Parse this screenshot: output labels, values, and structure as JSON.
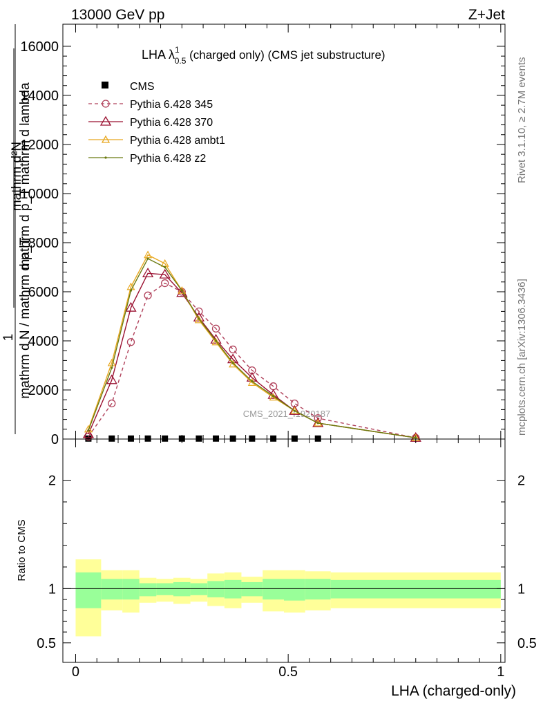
{
  "header": {
    "energy_label": "13000 GeV pp",
    "process_label": "Z+Jet"
  },
  "side": {
    "rivet_label": "Rivet 3.1.10, ≥ 2.7M events",
    "mcplots_label": "mcplots.cern.ch [arXiv:1306.3436]"
  },
  "chart_data": [
    {
      "type": "line",
      "title_main": "LHA λ",
      "title_sup": "1",
      "title_sub": "0.5",
      "title_rest": " (charged only) (CMS jet substructure)",
      "ylabel_num": "mathrm d²N",
      "ylabel_den": "mathrm d p_T mathrm d lambda",
      "ylabel_frac_one": "1",
      "ylabel_frac_den": "mathrm d N / mathrm d p_T",
      "watermark": "CMS_2021_I1920187",
      "xlim": [
        -0.03,
        1.01
      ],
      "ylim": [
        0,
        16900
      ],
      "yticks": [
        0,
        2000,
        4000,
        6000,
        8000,
        10000,
        12000,
        14000,
        16000
      ],
      "yticklabels": [
        "0",
        "2000",
        "4000",
        "6000",
        "8000",
        "10000",
        "12000",
        "14000",
        "16000"
      ],
      "series": [
        {
          "name": "CMS",
          "color": "#000000",
          "marker": "square",
          "x": [
            0.03,
            0.085,
            0.13,
            0.17,
            0.21,
            0.25,
            0.29,
            0.33,
            0.37,
            0.415,
            0.465,
            0.515,
            0.57
          ],
          "y": [
            20,
            20,
            20,
            20,
            20,
            20,
            20,
            20,
            20,
            20,
            20,
            20,
            20
          ]
        },
        {
          "name": "Pythia 6.428 345",
          "color": "#b0405a",
          "marker": "circle",
          "dash": "5,4",
          "x": [
            0.03,
            0.085,
            0.13,
            0.17,
            0.21,
            0.25,
            0.29,
            0.33,
            0.37,
            0.415,
            0.465,
            0.515,
            0.57,
            0.8
          ],
          "y": [
            100,
            1450,
            3950,
            5850,
            6350,
            6000,
            5200,
            4500,
            3650,
            2800,
            2150,
            1450,
            850,
            50
          ]
        },
        {
          "name": "Pythia 6.428 370",
          "color": "#9a1030",
          "marker": "triangle",
          "x": [
            0.03,
            0.085,
            0.13,
            0.17,
            0.21,
            0.25,
            0.29,
            0.33,
            0.37,
            0.415,
            0.465,
            0.515,
            0.57,
            0.8
          ],
          "y": [
            200,
            2400,
            5350,
            6750,
            6700,
            5950,
            4950,
            4050,
            3250,
            2500,
            1800,
            1150,
            650,
            50
          ]
        },
        {
          "name": "Pythia 6.428 ambt1",
          "color": "#e8a820",
          "marker": "triangle-small",
          "x": [
            0.03,
            0.085,
            0.13,
            0.17,
            0.21,
            0.25,
            0.29,
            0.33,
            0.37,
            0.415,
            0.465,
            0.515,
            0.57,
            0.8
          ],
          "y": [
            400,
            3100,
            6200,
            7500,
            7150,
            6050,
            4850,
            3950,
            3050,
            2300,
            1700,
            1150,
            650,
            50
          ]
        },
        {
          "name": "Pythia 6.428 z2",
          "color": "#6b7a10",
          "marker": "dot",
          "x": [
            0.03,
            0.085,
            0.13,
            0.17,
            0.21,
            0.25,
            0.29,
            0.33,
            0.37,
            0.415,
            0.465,
            0.515,
            0.57,
            0.8
          ],
          "y": [
            350,
            2900,
            6050,
            7350,
            7000,
            6050,
            4900,
            4000,
            3100,
            2350,
            1750,
            1150,
            650,
            50
          ]
        }
      ]
    },
    {
      "type": "area",
      "ylabel": "Ratio to CMS",
      "xlabel": "LHA (charged-only)",
      "xlim": [
        -0.03,
        1.01
      ],
      "ylim": [
        0.32,
        2.38
      ],
      "xticks": [
        0,
        0.5,
        1
      ],
      "xticklabels": [
        "0",
        "0.5",
        "1"
      ],
      "yticks": [
        0.5,
        1,
        2
      ],
      "yticklabels": [
        "0.5",
        "1",
        "2"
      ],
      "bands": {
        "edges": [
          0.0,
          0.06,
          0.11,
          0.15,
          0.19,
          0.23,
          0.27,
          0.31,
          0.35,
          0.39,
          0.44,
          0.49,
          0.54,
          0.6,
          1.0
        ],
        "inner_low": [
          0.82,
          0.9,
          0.9,
          0.93,
          0.94,
          0.93,
          0.94,
          0.92,
          0.91,
          0.93,
          0.9,
          0.89,
          0.9,
          0.91
        ],
        "inner_high": [
          1.15,
          1.09,
          1.09,
          1.05,
          1.05,
          1.06,
          1.05,
          1.07,
          1.08,
          1.06,
          1.09,
          1.09,
          1.09,
          1.08
        ],
        "outer_low": [
          0.56,
          0.8,
          0.78,
          0.87,
          0.88,
          0.86,
          0.88,
          0.84,
          0.82,
          0.87,
          0.79,
          0.78,
          0.8,
          0.82
        ],
        "outer_high": [
          1.27,
          1.17,
          1.17,
          1.1,
          1.09,
          1.1,
          1.09,
          1.14,
          1.15,
          1.11,
          1.17,
          1.17,
          1.16,
          1.15
        ]
      },
      "inner_color": "#99ff99",
      "outer_color": "#ffff99"
    }
  ]
}
